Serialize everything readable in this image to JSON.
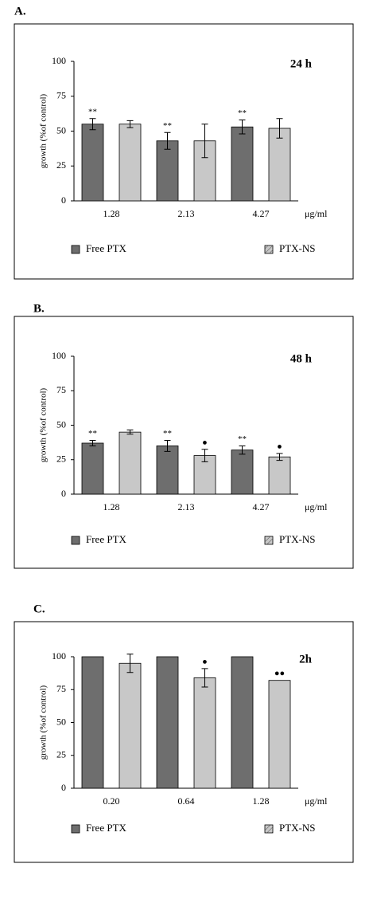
{
  "chart_data": [
    {
      "type": "bar",
      "label": "A.",
      "annotation": "24 h",
      "ylabel": "growth (%of control)",
      "xunit": "μg/ml",
      "categories": [
        "1.28",
        "2.13",
        "4.27"
      ],
      "ylim": [
        0,
        100
      ],
      "yticks": [
        0,
        25,
        50,
        75,
        100
      ],
      "series": [
        {
          "name": "Free PTX",
          "color": "#6e6e6e",
          "values": [
            55,
            43,
            53
          ],
          "errors": [
            4,
            6,
            5
          ],
          "annotations": [
            "**",
            "**",
            "**"
          ]
        },
        {
          "name": "PTX-NS",
          "color": "#c8c8c8",
          "values": [
            55,
            43,
            52
          ],
          "errors": [
            2.5,
            12,
            7
          ],
          "annotations": [
            null,
            null,
            null
          ]
        }
      ]
    },
    {
      "type": "bar",
      "label": "B.",
      "annotation": "48 h",
      "ylabel": "growth (%of control)",
      "xunit": "μg/ml",
      "categories": [
        "1.28",
        "2.13",
        "4.27"
      ],
      "ylim": [
        0,
        100
      ],
      "yticks": [
        0,
        25,
        50,
        75,
        100
      ],
      "series": [
        {
          "name": "Free PTX",
          "color": "#6e6e6e",
          "values": [
            37,
            35,
            32
          ],
          "errors": [
            2,
            4,
            3
          ],
          "annotations": [
            "**",
            "**",
            "**"
          ]
        },
        {
          "name": "PTX-NS",
          "color": "#c8c8c8",
          "values": [
            45,
            28,
            27
          ],
          "errors": [
            1.5,
            4.5,
            2.5
          ],
          "annotations": [
            null,
            "●",
            "●"
          ]
        }
      ]
    },
    {
      "type": "bar",
      "label": "C.",
      "annotation": "2h",
      "ylabel": "growth (%of control)",
      "xunit": "μg/ml",
      "categories": [
        "0.20",
        "0.64",
        "1.28"
      ],
      "ylim": [
        0,
        100
      ],
      "yticks": [
        0,
        25,
        50,
        75,
        100
      ],
      "series": [
        {
          "name": "Free PTX",
          "color": "#6e6e6e",
          "values": [
            100,
            100,
            100
          ],
          "errors": [
            null,
            null,
            null
          ],
          "annotations": [
            null,
            null,
            null
          ]
        },
        {
          "name": "PTX-NS",
          "color": "#c8c8c8",
          "values": [
            95,
            84,
            82
          ],
          "errors": [
            7,
            7,
            null
          ],
          "annotations": [
            null,
            "●",
            "●●"
          ]
        }
      ]
    }
  ]
}
